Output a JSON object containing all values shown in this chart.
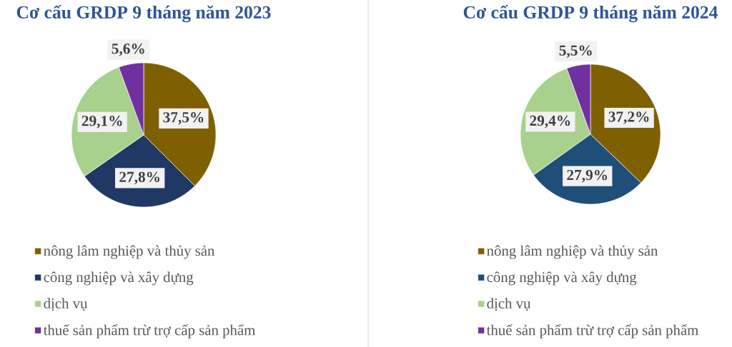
{
  "chart_data": [
    {
      "type": "pie",
      "title": "Cơ cấu GRDP 9 tháng năm 2023",
      "categories": [
        "nông lâm nghiệp và thủy sản",
        "công nghiệp và xây dựng",
        "dịch vụ",
        "thuế sản phẩm trừ trợ cấp sản phẩm"
      ],
      "values": [
        37.5,
        27.8,
        29.1,
        5.6
      ],
      "colors": [
        "#7f6000",
        "#203864",
        "#a9d18e",
        "#7030a0"
      ],
      "value_labels": [
        "37,5%",
        "27,8%",
        "29,1%",
        "5,6%"
      ],
      "legend": "bottom"
    },
    {
      "type": "pie",
      "title": "Cơ cấu GRDP 9 tháng năm 2024",
      "categories": [
        "nông lâm nghiệp và thủy sản",
        "công nghiệp và xây dựng",
        "dịch vụ",
        "thuế sản phẩm trừ trợ cấp sản phẩm"
      ],
      "values": [
        37.2,
        27.9,
        29.4,
        5.5
      ],
      "colors": [
        "#7f6000",
        "#1f4e79",
        "#a9d18e",
        "#7030a0"
      ],
      "value_labels": [
        "37,2%",
        "27,9%",
        "29,4%",
        "5,5%"
      ],
      "legend": "bottom"
    }
  ]
}
